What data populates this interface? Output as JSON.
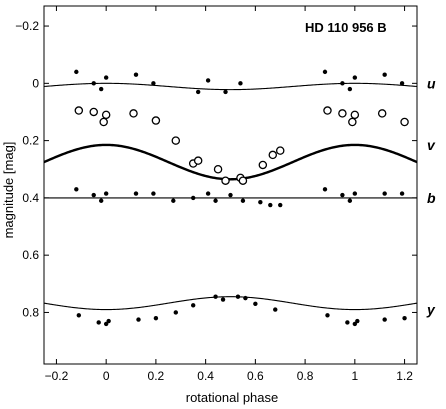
{
  "chart_data": {
    "type": "scatter",
    "title": "HD 110 956 B",
    "xlabel": "rotational phase",
    "ylabel": "magnitude [mag]",
    "xlim": [
      -0.25,
      1.25
    ],
    "ylim": [
      -0.27,
      0.98
    ],
    "y_inverted": true,
    "x_ticks": [
      -0.2,
      0,
      0.2,
      0.4,
      0.6,
      0.8,
      1,
      1.2
    ],
    "x_tick_labels": [
      "−0.2",
      "0",
      "0.2",
      "0.4",
      "0.6",
      "0.8",
      "1",
      "1.2"
    ],
    "y_ticks": [
      -0.2,
      0,
      0.2,
      0.4,
      0.6,
      0.8
    ],
    "y_tick_labels": [
      "−0.2",
      "0",
      "0.2",
      "0.4",
      "0.6",
      "0.8"
    ],
    "grid": false,
    "series": [
      {
        "name": "u",
        "marker": "filled-dot",
        "points": [
          [
            -0.12,
            -0.04
          ],
          [
            -0.05,
            0.0
          ],
          [
            -0.02,
            0.02
          ],
          [
            0.0,
            -0.02
          ],
          [
            0.12,
            -0.03
          ],
          [
            0.19,
            0.0
          ],
          [
            0.37,
            0.03
          ],
          [
            0.41,
            -0.01
          ],
          [
            0.48,
            0.03
          ],
          [
            0.54,
            0.0
          ],
          [
            0.88,
            -0.04
          ],
          [
            0.95,
            0.0
          ],
          [
            0.98,
            0.02
          ],
          [
            1.0,
            -0.02
          ],
          [
            1.12,
            -0.03
          ],
          [
            1.19,
            0.0
          ]
        ],
        "fit_mean": 0.0,
        "fit_amplitude": 0.022,
        "fit_bold": false
      },
      {
        "name": "v",
        "marker": "open-circle",
        "points": [
          [
            -0.11,
            0.095
          ],
          [
            -0.05,
            0.1
          ],
          [
            -0.01,
            0.135
          ],
          [
            0.0,
            0.11
          ],
          [
            0.11,
            0.105
          ],
          [
            0.2,
            0.13
          ],
          [
            0.28,
            0.2
          ],
          [
            0.35,
            0.28
          ],
          [
            0.37,
            0.27
          ],
          [
            0.45,
            0.3
          ],
          [
            0.48,
            0.34
          ],
          [
            0.54,
            0.33
          ],
          [
            0.55,
            0.34
          ],
          [
            0.63,
            0.285
          ],
          [
            0.67,
            0.25
          ],
          [
            0.7,
            0.235
          ],
          [
            0.89,
            0.095
          ],
          [
            0.95,
            0.105
          ],
          [
            0.99,
            0.135
          ],
          [
            1.0,
            0.11
          ],
          [
            1.11,
            0.105
          ],
          [
            1.2,
            0.135
          ]
        ],
        "fit_mean": 0.215,
        "fit_amplitude": 0.12,
        "fit_bold": true
      },
      {
        "name": "b",
        "marker": "filled-dot",
        "points": [
          [
            -0.12,
            0.37
          ],
          [
            -0.05,
            0.39
          ],
          [
            -0.02,
            0.41
          ],
          [
            0.0,
            0.385
          ],
          [
            0.12,
            0.385
          ],
          [
            0.19,
            0.385
          ],
          [
            0.27,
            0.41
          ],
          [
            0.35,
            0.4
          ],
          [
            0.41,
            0.385
          ],
          [
            0.44,
            0.41
          ],
          [
            0.5,
            0.39
          ],
          [
            0.55,
            0.41
          ],
          [
            0.62,
            0.415
          ],
          [
            0.66,
            0.425
          ],
          [
            0.7,
            0.425
          ],
          [
            0.88,
            0.37
          ],
          [
            0.95,
            0.39
          ],
          [
            0.98,
            0.41
          ],
          [
            1.0,
            0.385
          ],
          [
            1.12,
            0.385
          ],
          [
            1.19,
            0.385
          ]
        ],
        "fit_mean": 0.4,
        "fit_amplitude": 0.0,
        "fit_bold": false
      },
      {
        "name": "y",
        "marker": "filled-dot",
        "points": [
          [
            -0.11,
            0.81
          ],
          [
            -0.03,
            0.835
          ],
          [
            0.0,
            0.84
          ],
          [
            0.01,
            0.83
          ],
          [
            0.13,
            0.825
          ],
          [
            0.2,
            0.82
          ],
          [
            0.28,
            0.8
          ],
          [
            0.35,
            0.775
          ],
          [
            0.44,
            0.745
          ],
          [
            0.47,
            0.755
          ],
          [
            0.53,
            0.745
          ],
          [
            0.56,
            0.75
          ],
          [
            0.6,
            0.77
          ],
          [
            0.68,
            0.79
          ],
          [
            0.89,
            0.81
          ],
          [
            0.97,
            0.835
          ],
          [
            1.0,
            0.84
          ],
          [
            1.01,
            0.83
          ],
          [
            1.12,
            0.825
          ],
          [
            1.2,
            0.82
          ]
        ],
        "fit_mean": 0.79,
        "fit_amplitude": -0.045,
        "fit_bold": false
      }
    ]
  }
}
